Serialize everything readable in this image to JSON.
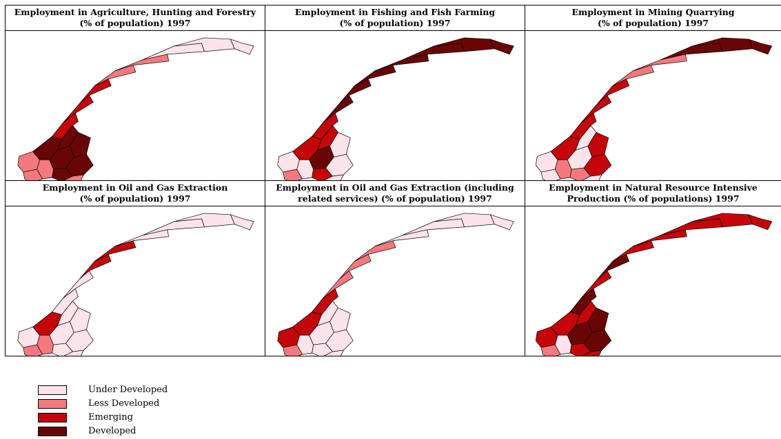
{
  "colors": {
    "under": "#fde3ea",
    "less": "#f3797e",
    "emerging": "#c4060a",
    "developed": "#6a0505"
  },
  "panels": [
    {
      "title_line1": "Employment in Agriculture, Hunting and Forestry",
      "title_line2": "(% of population) 1997",
      "regions": [
        "less",
        "developed",
        "developed",
        "developed",
        "developed",
        "developed",
        "less",
        "less",
        "less",
        "developed",
        "emerging",
        "emerging",
        "emerging",
        "less",
        "less",
        "under",
        "under",
        "under"
      ]
    },
    {
      "title_line1": "Employment in Fishing and Fish Farming",
      "title_line2": "(% of population) 1997",
      "regions": [
        "under",
        "emerging",
        "developed",
        "emerging",
        "under",
        "under",
        "less",
        "under",
        "under",
        "emerging",
        "emerging",
        "developed",
        "developed",
        "developed",
        "developed",
        "developed",
        "developed",
        "developed"
      ]
    },
    {
      "title_line1": "Employment in Mining Quarrying",
      "title_line2": "(% of population) 1997",
      "regions": [
        "under",
        "emerging",
        "under",
        "less",
        "emerging",
        "emerging",
        "under",
        "less",
        "under",
        "under",
        "emerging",
        "emerging",
        "emerging",
        "less",
        "less",
        "developed",
        "developed",
        "developed"
      ]
    },
    {
      "title_line1": "Employment in Oil and Gas Extraction",
      "title_line2": "(% of population) 1997",
      "regions": [
        "under",
        "emerging",
        "under",
        "under",
        "under",
        "under",
        "less",
        "less",
        "under",
        "under",
        "under",
        "under",
        "emerging",
        "emerging",
        "under",
        "under",
        "under",
        "under"
      ]
    },
    {
      "title_line1": "Employment in Oil and Gas Extraction (including",
      "title_line2": "related services) (% of population) 1997",
      "regions": [
        "emerging",
        "emerging",
        "under",
        "under",
        "under",
        "under",
        "less",
        "under",
        "under",
        "under",
        "emerging",
        "less",
        "less",
        "less",
        "under",
        "under",
        "under",
        "under"
      ]
    },
    {
      "title_line1": "Employment in Natural Resource Intensive",
      "title_line2": "Production (% of populations) 1997",
      "regions": [
        "emerging",
        "emerging",
        "developed",
        "emerging",
        "developed",
        "developed",
        "less",
        "under",
        "emerging",
        "emerging",
        "developed",
        "emerging",
        "developed",
        "emerging",
        "emerging",
        "emerging",
        "emerging",
        "emerging"
      ]
    }
  ],
  "legend": [
    {
      "label": "Under Developed",
      "level": "under"
    },
    {
      "label": "Less Developed",
      "level": "less"
    },
    {
      "label": "Emerging",
      "level": "emerging"
    },
    {
      "label": "Developed",
      "level": "developed"
    }
  ]
}
